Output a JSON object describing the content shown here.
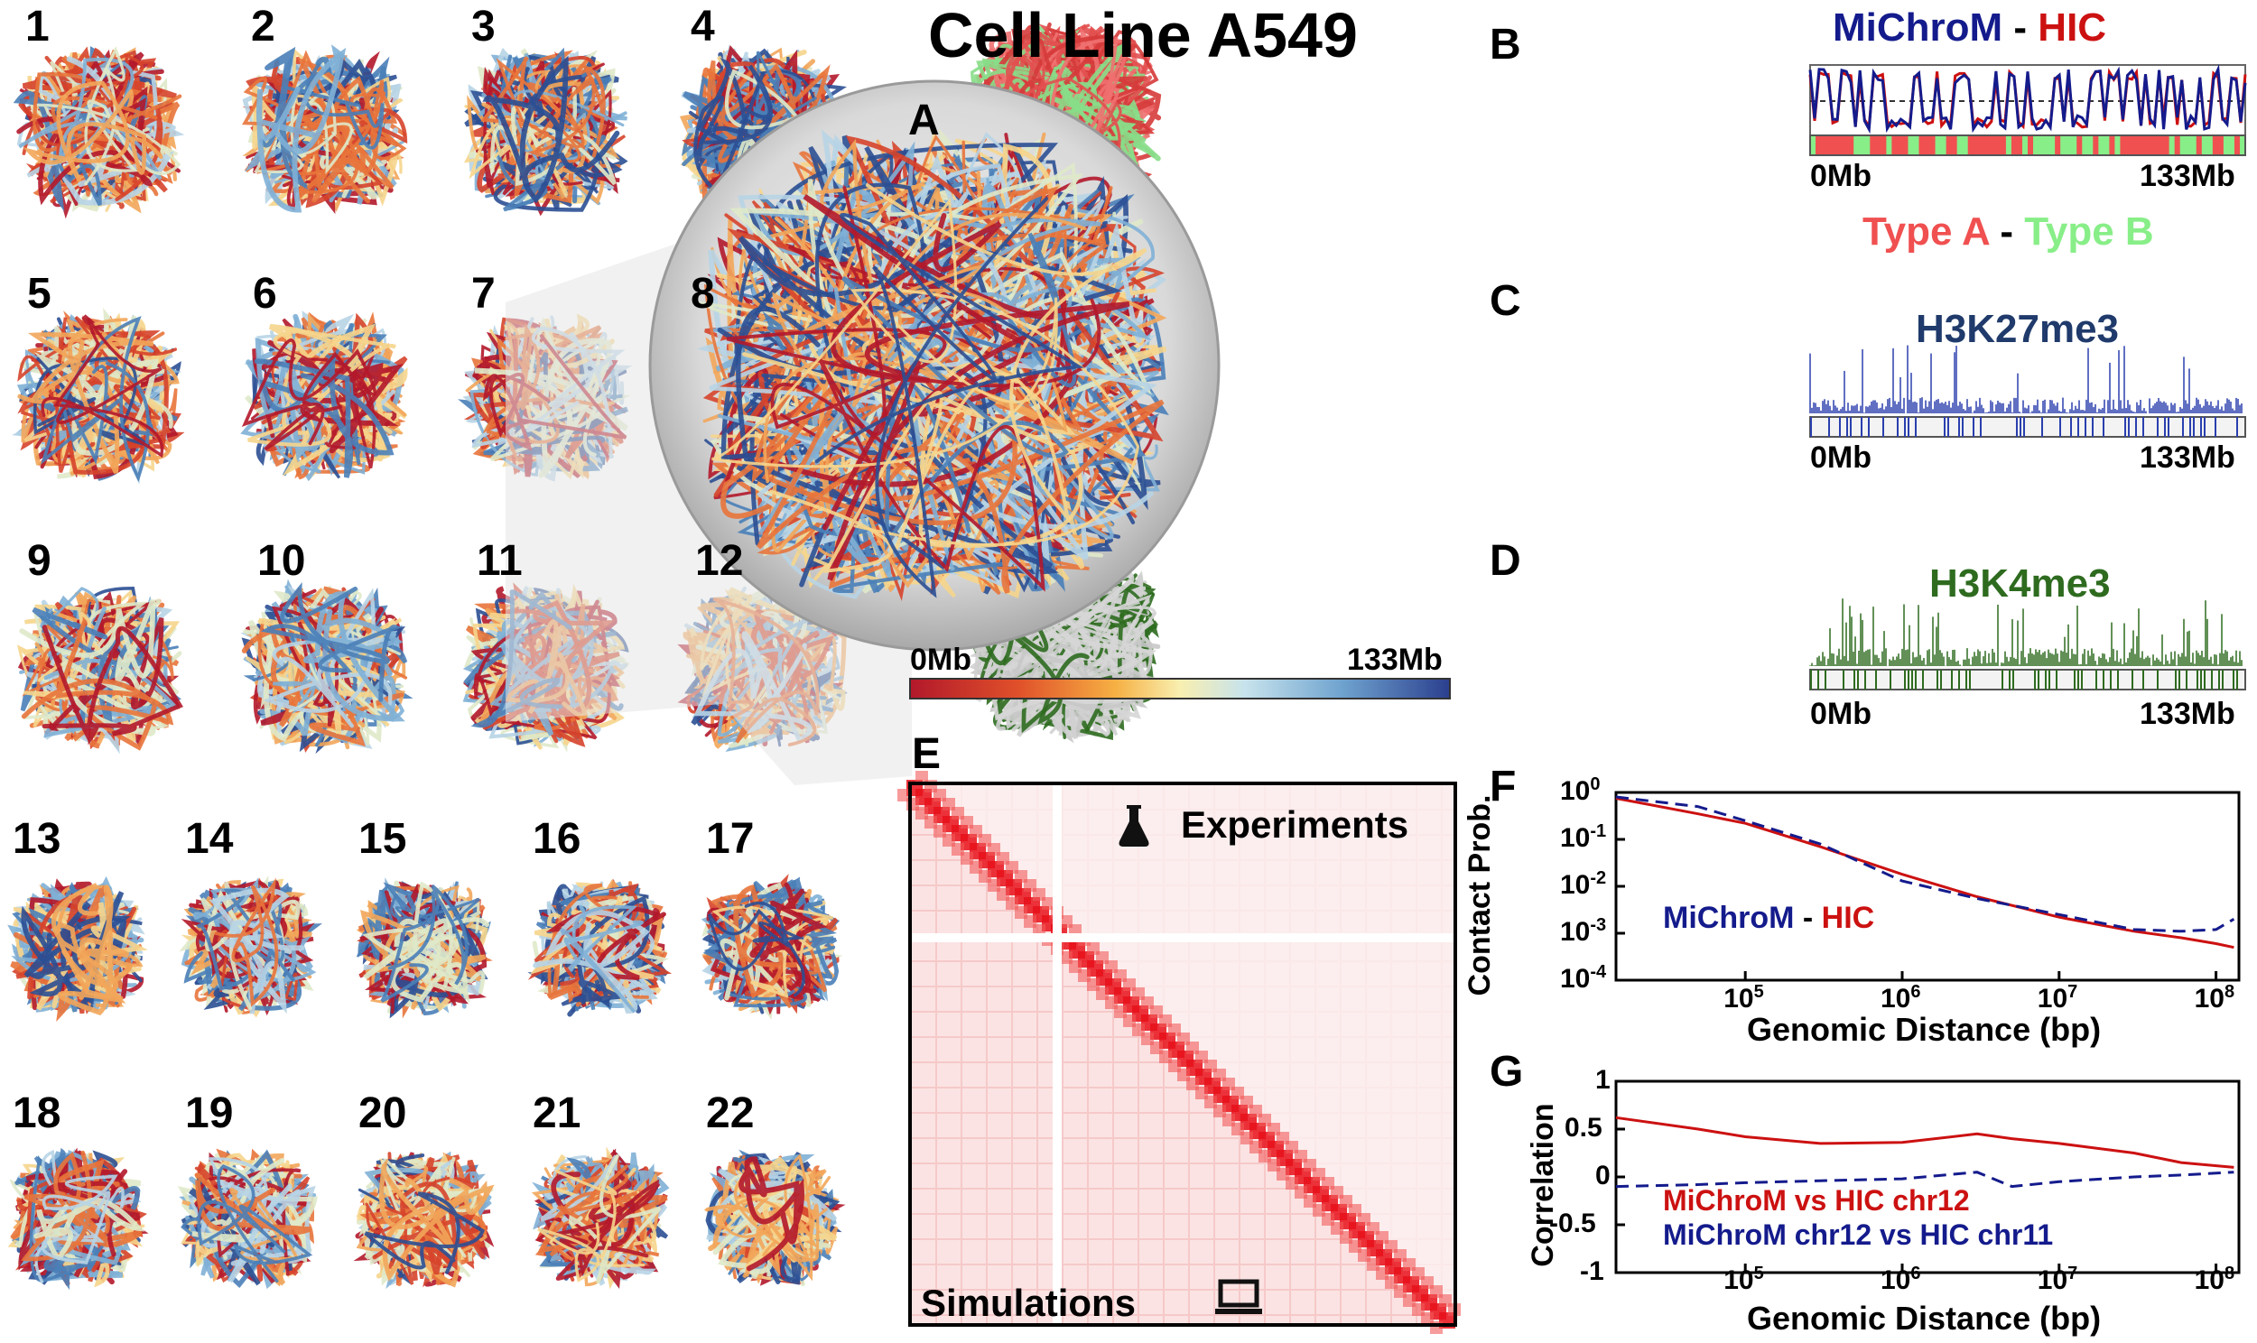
{
  "title": "Cell Line A549",
  "panel_labels": {
    "A": "A",
    "B": "B",
    "C": "C",
    "D": "D",
    "E": "E",
    "F": "F",
    "G": "G"
  },
  "chromosomes": [
    "1",
    "2",
    "3",
    "4",
    "5",
    "6",
    "7",
    "8",
    "9",
    "10",
    "11",
    "12",
    "13",
    "14",
    "15",
    "16",
    "17",
    "18",
    "19",
    "20",
    "21",
    "22"
  ],
  "colorbar": {
    "left": "0Mb",
    "right": "133Mb"
  },
  "panel_b": {
    "title_left": "MiChroM",
    "title_sep": " - ",
    "title_right": "HIC",
    "axis_left": "0Mb",
    "axis_right": "133Mb",
    "types_left": "Type A",
    "types_sep": " - ",
    "types_right": "Type B"
  },
  "panel_c": {
    "title": "H3K27me3",
    "axis_left": "0Mb",
    "axis_right": "133Mb"
  },
  "panel_d": {
    "title": "H3K4me3",
    "axis_left": "0Mb",
    "axis_right": "133Mb"
  },
  "panel_e": {
    "upper": "Experiments",
    "lower": "Simulations"
  },
  "colors": {
    "red": "#cc1111",
    "blue": "#141b8c",
    "darkblue": "#1f3a6b",
    "green": "#2e6b1f",
    "typeA": "#f05050",
    "typeB": "#88ee88"
  },
  "chart_data": [
    {
      "type": "line",
      "panel": "F",
      "xlabel": "Genomic Distance (bp)",
      "ylabel": "Contact Prob.",
      "xscale": "log",
      "yscale": "log",
      "xlim": [
        15000,
        140000000
      ],
      "ylim": [
        0.0001,
        1
      ],
      "xticks": [
        "10^5",
        "10^6",
        "10^7",
        "10^8"
      ],
      "yticks": [
        "10^0",
        "10^-1",
        "10^-2",
        "10^-3",
        "10^-4"
      ],
      "legend": {
        "left": "MiChroM",
        "sep": " - ",
        "right": "HIC"
      },
      "series": [
        {
          "name": "HIC",
          "style": "solid",
          "color": "#cc1111",
          "x": [
            15000,
            50000,
            100000,
            300000,
            1000000,
            3000000,
            10000000,
            30000000,
            60000000,
            100000000,
            130000000
          ],
          "y": [
            0.75,
            0.35,
            0.22,
            0.07,
            0.018,
            0.006,
            0.0022,
            0.0011,
            0.0008,
            0.0006,
            0.0005
          ]
        },
        {
          "name": "MiChroM",
          "style": "dashed",
          "color": "#141b8c",
          "x": [
            15000,
            50000,
            100000,
            300000,
            1000000,
            3000000,
            10000000,
            30000000,
            60000000,
            100000000,
            130000000
          ],
          "y": [
            0.8,
            0.5,
            0.25,
            0.08,
            0.013,
            0.0055,
            0.0025,
            0.0012,
            0.0011,
            0.0012,
            0.002
          ]
        }
      ]
    },
    {
      "type": "line",
      "panel": "G",
      "xlabel": "Genomic Distance (bp)",
      "ylabel": "Correlation",
      "xscale": "log",
      "xlim": [
        15000,
        140000000
      ],
      "ylim": [
        -1,
        1
      ],
      "xticks": [
        "10^5",
        "10^6",
        "10^7",
        "10^8"
      ],
      "yticks": [
        "1",
        "0.5",
        "0",
        "-0.5",
        "-1"
      ],
      "series": [
        {
          "name": "MiChroM vs HIC chr12",
          "color": "#cc1111",
          "x": [
            15000,
            50000,
            100000,
            300000,
            1000000,
            3000000,
            5000000,
            10000000,
            30000000,
            60000000,
            130000000
          ],
          "y": [
            0.62,
            0.5,
            0.42,
            0.35,
            0.36,
            0.45,
            0.4,
            0.35,
            0.25,
            0.15,
            0.1
          ]
        },
        {
          "name": "MiChroM chr12 vs HIC chr11",
          "color": "#141b8c",
          "x": [
            15000,
            50000,
            100000,
            300000,
            1000000,
            3000000,
            5000000,
            10000000,
            30000000,
            60000000,
            130000000
          ],
          "y": [
            -0.1,
            -0.08,
            -0.06,
            -0.04,
            -0.02,
            0.05,
            -0.1,
            -0.05,
            0.0,
            0.02,
            0.05
          ]
        }
      ]
    }
  ]
}
